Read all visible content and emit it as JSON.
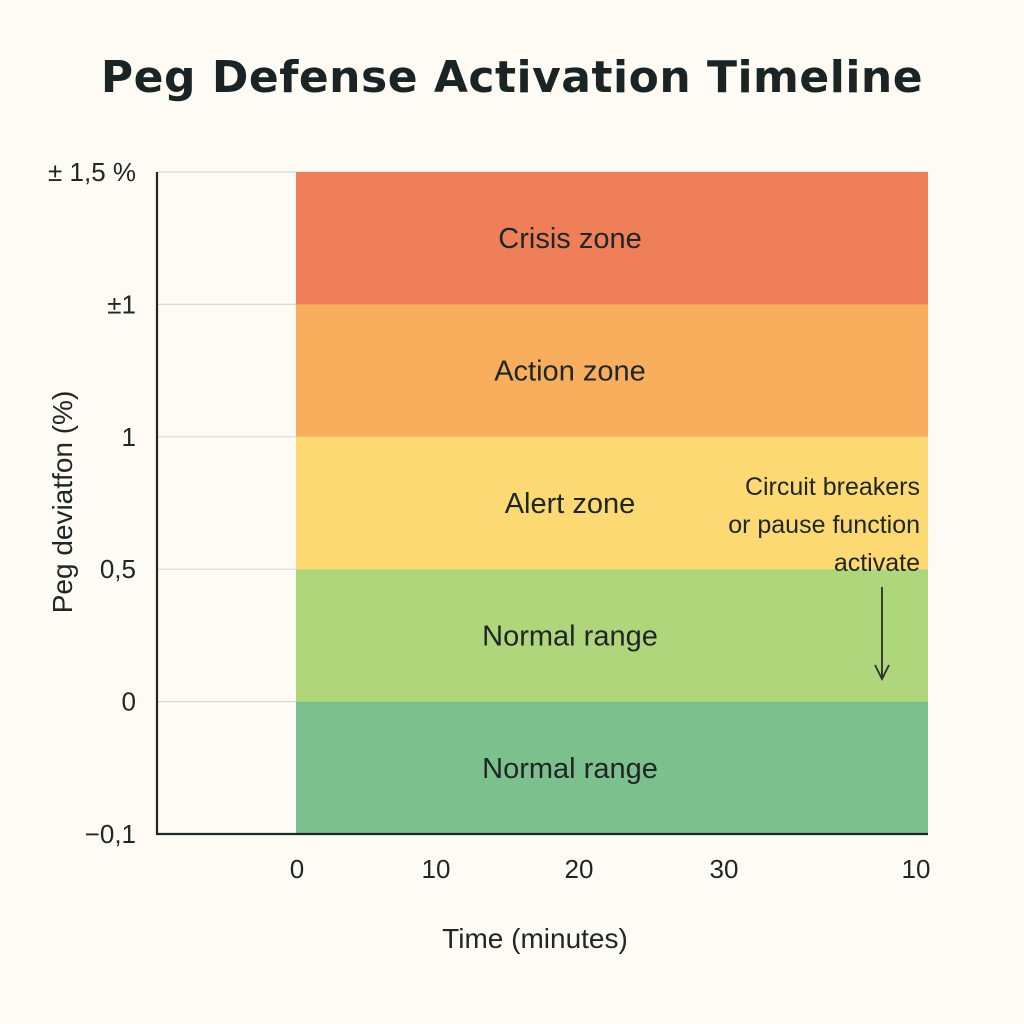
{
  "chart_data": {
    "type": "bar",
    "title": "Peg Defense Activation Timeline",
    "xlabel": "Time (minutes)",
    "ylabel": "Peg deviatfon (%)",
    "y_tick_labels": [
      "−0,1",
      "0",
      "0,5",
      "1",
      "±1",
      "± 1,5 %"
    ],
    "x_tick_labels": [
      "0",
      "10",
      "20",
      "30",
      "10"
    ],
    "zones": [
      {
        "name": "Normal range",
        "color": "#7bc08d"
      },
      {
        "name": "Normal range",
        "color": "#b0d67b"
      },
      {
        "name": "Alert zone",
        "color": "#fcd973"
      },
      {
        "name": "Action zone",
        "color": "#f8ae5c"
      },
      {
        "name": "Crisis zone",
        "color": "#ee7f58"
      }
    ],
    "annotation": {
      "lines": [
        "Circuit breakers",
        "or pause function",
        "activate"
      ],
      "arrow": "down"
    },
    "grid": true,
    "legend": "none"
  }
}
